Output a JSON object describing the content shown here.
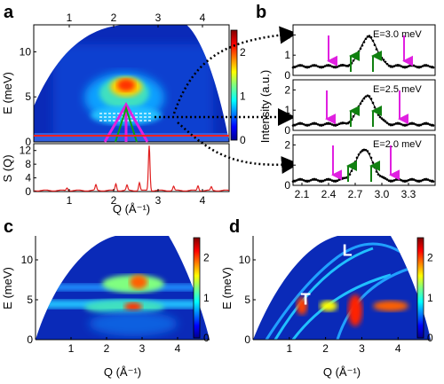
{
  "panels": {
    "a": "a",
    "b": "b",
    "c": "c",
    "d": "d"
  },
  "colors": {
    "jet": [
      "#00008f",
      "#0000ff",
      "#0080ff",
      "#00ffff",
      "#80ff80",
      "#ffff00",
      "#ff8000",
      "#ff0000",
      "#800000"
    ],
    "sq_line": "#e02020",
    "data_points": "#000000",
    "fit_line": "#000000",
    "arrow_magenta": "#e020e0",
    "arrow_green": "#108010",
    "overlay_lines": "#ffffff"
  },
  "chart_data": [
    {
      "id": "a-top",
      "type": "heatmap",
      "title": "",
      "xlabel": "",
      "ylabel": "E (meV)",
      "xlim": [
        0.2,
        4.6
      ],
      "ylim": [
        0,
        13
      ],
      "top_xticks": [
        "1",
        "2",
        "3",
        "4"
      ],
      "yticks": [
        "0",
        "5",
        "10"
      ],
      "colorbar": {
        "range": [
          0,
          2.5
        ],
        "ticks": [
          "0",
          "1",
          "2"
        ]
      },
      "overlays": {
        "magenta_dispersion_at_Q": 2.8,
        "cut_energies_meV": [
          2.0,
          2.5,
          3.0
        ]
      }
    },
    {
      "id": "a-bottom",
      "type": "line",
      "xlabel": "Q (Å⁻¹)",
      "ylabel": "S (Q)",
      "xlim": [
        0.2,
        4.6
      ],
      "ylim": [
        0,
        14
      ],
      "xticks": [
        "1",
        "2",
        "3",
        "4"
      ],
      "yticks": [
        "0",
        "4",
        "8",
        "12"
      ],
      "peaks": [
        {
          "q": 0.95,
          "s": 0.8
        },
        {
          "q": 1.6,
          "s": 1.6
        },
        {
          "q": 2.05,
          "s": 2.0
        },
        {
          "q": 2.3,
          "s": 1.5
        },
        {
          "q": 2.58,
          "s": 2.3
        },
        {
          "q": 2.8,
          "s": 13.2
        },
        {
          "q": 3.35,
          "s": 1.2
        },
        {
          "q": 3.9,
          "s": 1.4
        },
        {
          "q": 4.2,
          "s": 1.0
        }
      ]
    },
    {
      "id": "b",
      "type": "line",
      "xlabel": "",
      "ylabel": "Intensity (a.u.)",
      "xlim": [
        2.0,
        3.6
      ],
      "xticks": [
        "2.1",
        "2.4",
        "2.7",
        "3.0",
        "3.3"
      ],
      "ylim": [
        0,
        2.5
      ],
      "yticks": [
        "0",
        "1",
        "2"
      ],
      "series": [
        {
          "name": "E=3.0 meV",
          "peak_q": 2.85,
          "peak_height": 1.9,
          "baseline": 0.45,
          "magenta_arrows_q": [
            2.4,
            3.25
          ],
          "green_arrows_q": [
            2.65,
            2.9
          ]
        },
        {
          "name": "E=2.5 meV",
          "peak_q": 2.83,
          "peak_height": 1.7,
          "baseline": 0.3,
          "magenta_arrows_q": [
            2.38,
            3.2
          ],
          "green_arrows_q": [
            2.65,
            2.9
          ]
        },
        {
          "name": "E=2.0 meV",
          "peak_q": 2.8,
          "peak_height": 1.8,
          "baseline": 0.25,
          "magenta_arrows_q": [
            2.45,
            3.1
          ],
          "green_arrows_q": [
            2.62,
            2.88
          ]
        }
      ]
    },
    {
      "id": "c",
      "type": "heatmap",
      "xlabel": "Q (Å⁻¹)",
      "ylabel": "E (meV)",
      "xlim": [
        0,
        4.9
      ],
      "ylim": [
        0,
        13
      ],
      "xticks": [
        "1",
        "2",
        "3",
        "4"
      ],
      "yticks": [
        "0",
        "5",
        "10"
      ],
      "colorbar": {
        "range": [
          0,
          2.5
        ],
        "ticks": [
          "0",
          "1",
          "2"
        ]
      }
    },
    {
      "id": "d",
      "type": "heatmap",
      "xlabel": "Q (Å⁻¹)",
      "ylabel": "E (meV)",
      "xlim": [
        0,
        4.9
      ],
      "ylim": [
        0,
        13
      ],
      "xticks": [
        "1",
        "2",
        "3",
        "4"
      ],
      "yticks": [
        "0",
        "5",
        "10"
      ],
      "colorbar": {
        "range": [
          0,
          2.5
        ],
        "ticks": [
          "0",
          "1",
          "2"
        ]
      },
      "annotations": [
        {
          "text": "L",
          "q": 2.6,
          "e": 10.5
        },
        {
          "text": "T",
          "q": 1.45,
          "e": 4.4
        }
      ]
    }
  ]
}
